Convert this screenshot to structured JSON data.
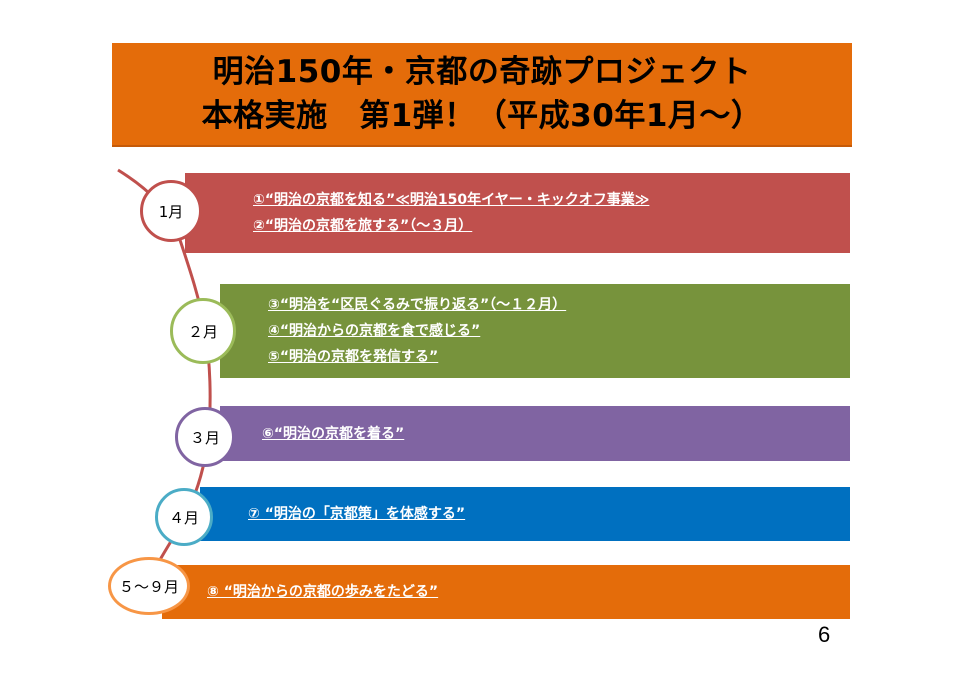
{
  "title": {
    "line1": "明治150年・京都の奇跡プロジェクト",
    "line2": "本格実施　第1弾！（平成30年1月～）"
  },
  "colors": {
    "title_bg": "#e46c0a",
    "timeline_curve": "#c0504d",
    "band_jan": "#c0504d",
    "band_feb": "#77933c",
    "band_mar": "#8064a2",
    "band_apr": "#0070c0",
    "band_may_sep": "#e46c0a"
  },
  "timeline": [
    {
      "month": "1月",
      "items": [
        "①“明治の京都を知る”≪明治150年イヤー・キックオフ事業≫",
        "②“明治の京都を旅する”（～３月）"
      ]
    },
    {
      "month": "２月",
      "items": [
        "③“明治を“区民ぐるみで振り返る”（～１２月）",
        "④“明治からの京都を食で感じる”",
        "⑤“明治の京都を発信する”"
      ]
    },
    {
      "month": "３月",
      "items": [
        "⑥“明治の京都を着る”"
      ]
    },
    {
      "month": "４月",
      "items": [
        "⑦ “明治の「京都策」を体感する”"
      ]
    },
    {
      "month": "５～９月",
      "items": [
        "⑧ “明治からの京都の歩みをたどる”"
      ]
    }
  ],
  "page_number": "6"
}
